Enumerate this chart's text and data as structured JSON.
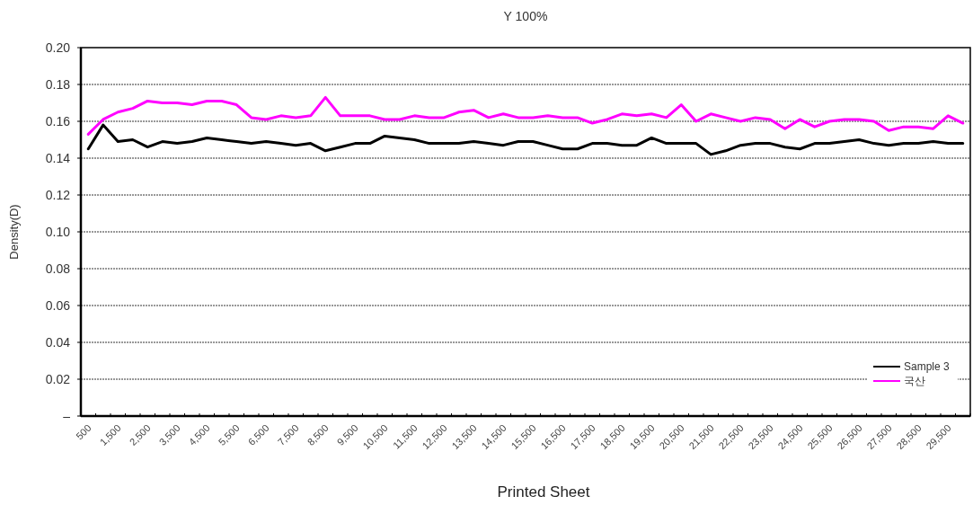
{
  "chart_data": {
    "type": "line",
    "title": "Y 100%",
    "xlabel": "Printed Sheet",
    "ylabel": "Density(D)",
    "categories": [
      "500",
      null,
      "1,500",
      null,
      "2,500",
      null,
      "3,500",
      null,
      "4,500",
      null,
      "5,500",
      null,
      "6,500",
      null,
      "7,500",
      null,
      "8,500",
      null,
      "9,500",
      null,
      "10,500",
      null,
      "11,500",
      null,
      "12,500",
      null,
      "13,500",
      null,
      "14,500",
      null,
      "15,500",
      null,
      "16,500",
      null,
      "17,500",
      null,
      "18,500",
      null,
      "19,500",
      null,
      "20,500",
      null,
      "21,500",
      null,
      "22,500",
      null,
      "23,500",
      null,
      "24,500",
      null,
      "25,500",
      null,
      "26,500",
      null,
      "27,500",
      null,
      "28,500",
      null,
      "29,500",
      null
    ],
    "series": [
      {
        "name": "Sample 3",
        "color": "#000000",
        "values": [
          0.145,
          0.158,
          0.149,
          0.15,
          0.146,
          0.149,
          0.148,
          0.149,
          0.151,
          0.15,
          0.149,
          0.148,
          0.149,
          0.148,
          0.147,
          0.148,
          0.144,
          0.146,
          0.148,
          0.148,
          0.152,
          0.151,
          0.15,
          0.148,
          0.148,
          0.148,
          0.149,
          0.148,
          0.147,
          0.149,
          0.149,
          0.147,
          0.145,
          0.145,
          0.148,
          0.148,
          0.147,
          0.147,
          0.151,
          0.148,
          0.148,
          0.148,
          0.142,
          0.144,
          0.147,
          0.148,
          0.148,
          0.146,
          0.145,
          0.148,
          0.148,
          0.149,
          0.15,
          0.148,
          0.147,
          0.148,
          0.148,
          0.149,
          0.148,
          0.148
        ]
      },
      {
        "name": "국산",
        "color": "#ff00ff",
        "values": [
          0.153,
          0.161,
          0.165,
          0.167,
          0.171,
          0.17,
          0.17,
          0.169,
          0.171,
          0.171,
          0.169,
          0.162,
          0.161,
          0.163,
          0.162,
          0.163,
          0.173,
          0.163,
          0.163,
          0.163,
          0.161,
          0.161,
          0.163,
          0.162,
          0.162,
          0.165,
          0.166,
          0.162,
          0.164,
          0.162,
          0.162,
          0.163,
          0.162,
          0.162,
          0.159,
          0.161,
          0.164,
          0.163,
          0.164,
          0.162,
          0.169,
          0.16,
          0.164,
          0.162,
          0.16,
          0.162,
          0.161,
          0.156,
          0.161,
          0.157,
          0.16,
          0.161,
          0.161,
          0.16,
          0.155,
          0.157,
          0.157,
          0.156,
          0.163,
          0.159
        ]
      }
    ],
    "ylim": [
      0,
      0.2
    ],
    "yticks": [
      {
        "value": 0,
        "label": "–"
      },
      0.02,
      0.04,
      0.06,
      0.08,
      {
        "value": 0.1,
        "label": "0.10"
      },
      0.12,
      0.14,
      0.16,
      0.18,
      {
        "value": 0.2,
        "label": "0.20"
      }
    ],
    "grid": "y",
    "legend": "bottom right"
  }
}
